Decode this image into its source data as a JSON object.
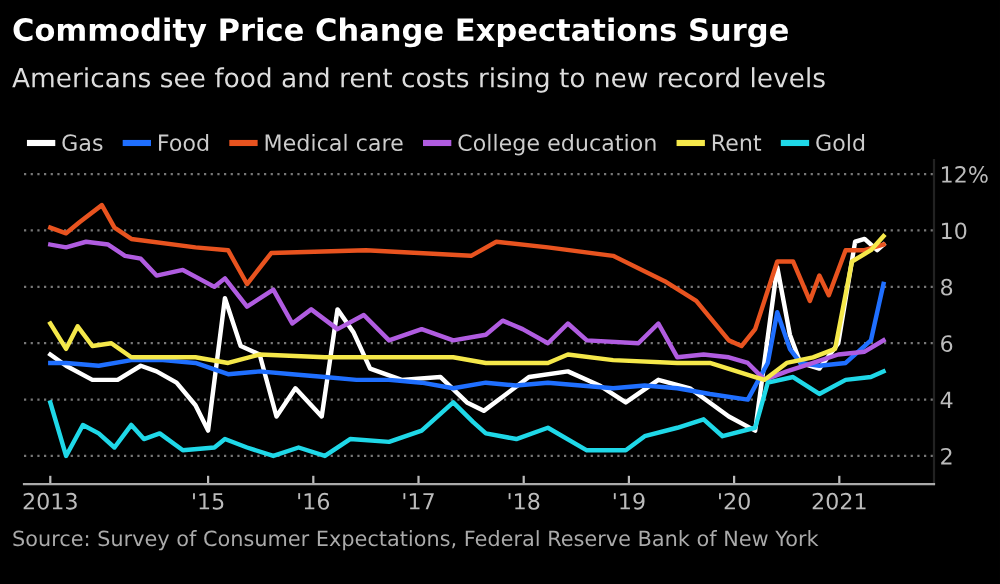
{
  "chart_data": {
    "type": "line",
    "title": "Commodity Price Change Expectations Surge",
    "subtitle": "Americans see food and rent costs rising to new record levels",
    "annotations": [
      "Source: Survey of Consumer Expectations, Federal Reserve Bank of New York"
    ],
    "xlim": [
      2013.25,
      2021.9
    ],
    "xticks": [
      {
        "value": 2013.5,
        "label": "2013"
      },
      {
        "value": 2015,
        "label": "'15"
      },
      {
        "value": 2016,
        "label": "'16"
      },
      {
        "value": 2017,
        "label": "'17"
      },
      {
        "value": 2018,
        "label": "'18"
      },
      {
        "value": 2019,
        "label": "'19"
      },
      {
        "value": 2020,
        "label": "'20"
      },
      {
        "value": 2021,
        "label": "2021"
      }
    ],
    "ylim": [
      1,
      12.5
    ],
    "yticks": [
      2,
      4,
      6,
      8,
      10,
      {
        "value": 12,
        "label": "12%"
      }
    ],
    "grid": "y",
    "legend": "top left",
    "marker": "none",
    "line_style": "solid",
    "series": [
      {
        "name": "Gas",
        "color": "#ffffff",
        "x": [
          2013.5,
          2013.65,
          2013.9,
          2014.14,
          2014.36,
          2014.51,
          2014.7,
          2014.88,
          2015.0,
          2015.16,
          2015.31,
          2015.49,
          2015.65,
          2015.83,
          2016.08,
          2016.23,
          2016.38,
          2016.54,
          2016.84,
          2017.21,
          2017.46,
          2017.62,
          2017.8,
          2018.05,
          2018.42,
          2018.72,
          2018.97,
          2019.28,
          2019.58,
          2019.95,
          2020.2,
          2020.41,
          2020.53,
          2020.63,
          2020.81,
          2020.99,
          2021.15,
          2021.24,
          2021.36,
          2021.42
        ],
        "values": [
          5.6,
          5.2,
          4.7,
          4.7,
          5.2,
          5.0,
          4.6,
          3.8,
          2.9,
          7.6,
          5.9,
          5.6,
          3.4,
          4.4,
          3.4,
          7.2,
          6.4,
          5.1,
          4.7,
          4.8,
          3.9,
          3.6,
          4.1,
          4.8,
          5.0,
          4.5,
          3.9,
          4.7,
          4.4,
          3.4,
          2.9,
          8.7,
          6.3,
          5.3,
          5.1,
          6.0,
          9.6,
          9.7,
          9.3,
          9.5
        ]
      },
      {
        "name": "Food",
        "color": "#1f6fff",
        "x": [
          2013.5,
          2013.65,
          2013.96,
          2014.27,
          2014.57,
          2014.88,
          2015.19,
          2015.49,
          2015.8,
          2016.11,
          2016.41,
          2016.72,
          2017.03,
          2017.33,
          2017.64,
          2017.93,
          2018.23,
          2018.54,
          2018.85,
          2019.15,
          2019.46,
          2019.77,
          2020.13,
          2020.32,
          2020.41,
          2020.53,
          2020.63,
          2020.81,
          2021.06,
          2021.3,
          2021.42
        ],
        "values": [
          5.3,
          5.3,
          5.2,
          5.4,
          5.4,
          5.3,
          4.9,
          5.0,
          4.9,
          4.8,
          4.7,
          4.7,
          4.6,
          4.4,
          4.6,
          4.5,
          4.6,
          4.5,
          4.4,
          4.5,
          4.4,
          4.2,
          4.0,
          5.3,
          7.1,
          5.8,
          5.3,
          5.2,
          5.3,
          6.1,
          8.1
        ]
      },
      {
        "name": "Medical care",
        "color": "#e8531f",
        "x": [
          2013.5,
          2013.65,
          2013.78,
          2013.99,
          2014.11,
          2014.27,
          2014.88,
          2015.19,
          2015.37,
          2015.6,
          2016.5,
          2017.5,
          2017.74,
          2018.23,
          2018.85,
          2019.34,
          2019.64,
          2019.95,
          2020.07,
          2020.2,
          2020.41,
          2020.56,
          2020.72,
          2020.81,
          2020.9,
          2021.06,
          2021.24,
          2021.42
        ],
        "values": [
          10.1,
          9.9,
          10.3,
          10.9,
          10.1,
          9.7,
          9.4,
          9.3,
          8.1,
          9.2,
          9.3,
          9.1,
          9.6,
          9.4,
          9.1,
          8.2,
          7.5,
          6.1,
          5.9,
          6.5,
          8.9,
          8.9,
          7.5,
          8.4,
          7.7,
          9.3,
          9.3,
          9.5
        ]
      },
      {
        "name": "College education",
        "color": "#b05ce0",
        "x": [
          2013.5,
          2013.65,
          2013.84,
          2014.05,
          2014.21,
          2014.36,
          2014.51,
          2014.76,
          2015.06,
          2015.16,
          2015.37,
          2015.62,
          2015.8,
          2015.98,
          2016.23,
          2016.48,
          2016.72,
          2017.03,
          2017.33,
          2017.64,
          2017.8,
          2017.99,
          2018.23,
          2018.42,
          2018.6,
          2019.09,
          2019.28,
          2019.46,
          2019.71,
          2019.95,
          2020.13,
          2020.29,
          2020.5,
          2020.75,
          2020.99,
          2021.24,
          2021.42
        ],
        "values": [
          9.5,
          9.4,
          9.6,
          9.5,
          9.1,
          9.0,
          8.4,
          8.6,
          8.0,
          8.3,
          7.3,
          7.9,
          6.7,
          7.2,
          6.5,
          7.0,
          6.1,
          6.5,
          6.1,
          6.3,
          6.8,
          6.5,
          6.0,
          6.7,
          6.1,
          6.0,
          6.7,
          5.5,
          5.6,
          5.5,
          5.3,
          4.7,
          5.0,
          5.3,
          5.6,
          5.7,
          6.1
        ]
      },
      {
        "name": "Rent",
        "color": "#f5e84a",
        "x": [
          2013.5,
          2013.65,
          2013.76,
          2013.9,
          2014.08,
          2014.27,
          2014.88,
          2015.19,
          2015.49,
          2016.11,
          2016.72,
          2017.33,
          2017.64,
          2018.23,
          2018.42,
          2018.85,
          2019.46,
          2019.77,
          2020.2,
          2020.29,
          2020.5,
          2020.75,
          2020.96,
          2021.12,
          2021.3,
          2021.42
        ],
        "values": [
          6.7,
          5.8,
          6.6,
          5.9,
          6.0,
          5.5,
          5.5,
          5.3,
          5.6,
          5.5,
          5.5,
          5.5,
          5.3,
          5.3,
          5.6,
          5.4,
          5.3,
          5.3,
          4.8,
          4.7,
          5.3,
          5.5,
          5.8,
          8.9,
          9.3,
          9.8
        ]
      },
      {
        "name": "Gold",
        "color": "#1fd8e8",
        "x": [
          2013.5,
          2013.65,
          2013.81,
          2013.96,
          2014.11,
          2014.27,
          2014.39,
          2014.54,
          2014.76,
          2015.06,
          2015.16,
          2015.37,
          2015.62,
          2015.86,
          2016.11,
          2016.35,
          2016.72,
          2017.03,
          2017.33,
          2017.52,
          2017.64,
          2017.93,
          2018.23,
          2018.6,
          2018.97,
          2019.15,
          2019.46,
          2019.71,
          2019.89,
          2020.2,
          2020.32,
          2020.56,
          2020.81,
          2021.06,
          2021.3,
          2021.42
        ],
        "values": [
          3.9,
          2.0,
          3.1,
          2.8,
          2.3,
          3.1,
          2.6,
          2.8,
          2.2,
          2.3,
          2.6,
          2.3,
          2.0,
          2.3,
          2.0,
          2.6,
          2.5,
          2.9,
          3.9,
          3.2,
          2.8,
          2.6,
          3.0,
          2.2,
          2.2,
          2.7,
          3.0,
          3.3,
          2.7,
          3.0,
          4.6,
          4.8,
          4.2,
          4.7,
          4.8,
          5.0
        ]
      }
    ]
  }
}
